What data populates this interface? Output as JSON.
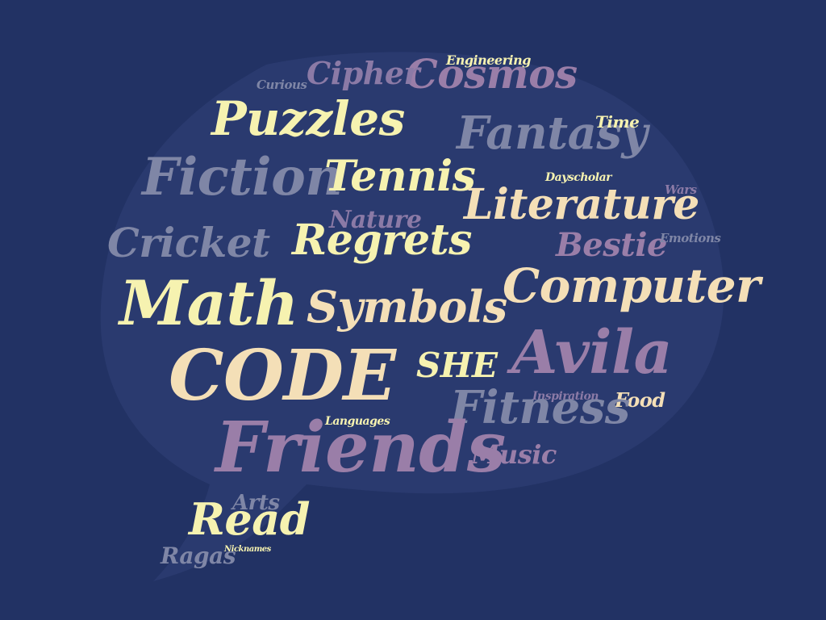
{
  "palette": {
    "background": "#223264",
    "bubble": "#2a3a6f",
    "yellow": "#f6f2b0",
    "cream": "#f4dfb7",
    "slate": "#7f86a6",
    "purple": "#9a7ea8",
    "lilac": "#8b7aa6"
  },
  "words": {
    "puzzles": "Puzzles",
    "cosmos": "Cosmos",
    "cipher": "Cipher",
    "engineering": "Engineering",
    "curious": "Curious",
    "fantasy": "Fantasy",
    "time": "Time",
    "fiction": "Fiction",
    "tennis": "Tennis",
    "dayscholar": "Dayscholar",
    "wars": "Wars",
    "literature": "Literature",
    "nature": "Nature",
    "cricket": "Cricket",
    "regrets": "Regrets",
    "bestie": "Bestie",
    "emotions": "Emotions",
    "math": "Math",
    "symbols": "Symbols",
    "computer": "Computer",
    "code": "CODE",
    "she": "SHE",
    "avila": "Avila",
    "inspiration": "Inspiration",
    "food": "Food",
    "fitness": "Fitness",
    "languages": "Languages",
    "friends": "Friends",
    "music": "Music",
    "arts": "Arts",
    "read": "Read",
    "ragas": "Ragas",
    "nicknames": "Nicknames"
  }
}
